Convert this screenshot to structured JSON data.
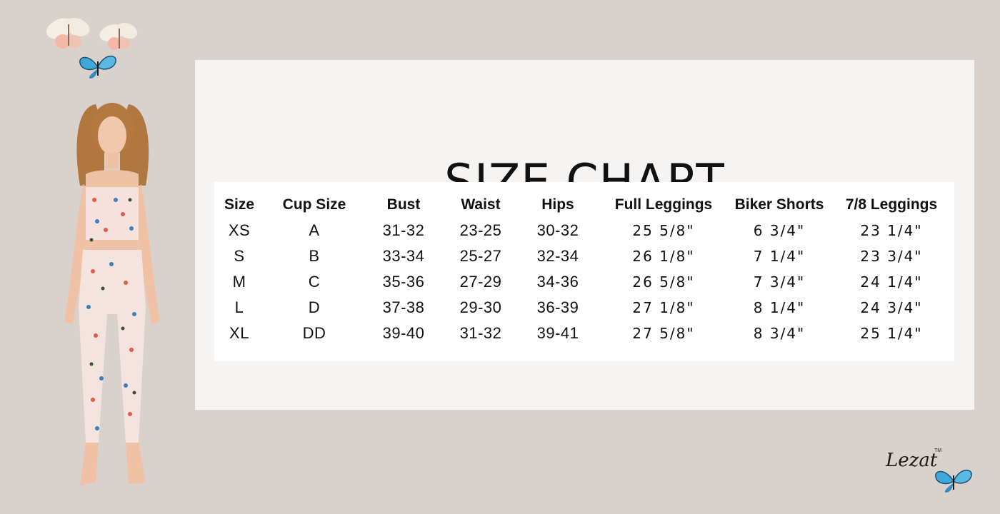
{
  "title": "SIZE CHART",
  "brand": "Lezat",
  "brand_tm": "TM",
  "headers": [
    "Size",
    "Cup Size",
    "Bust",
    "Waist",
    "Hips",
    "Full Leggings",
    "Biker Shorts",
    "7/8 Leggings"
  ],
  "rows": [
    [
      "XS",
      "A",
      "31-32",
      "23-25",
      "30-32",
      "25 5/8\"",
      "6 3/4\"",
      "23 1/4\""
    ],
    [
      "S",
      "B",
      "33-34",
      "25-27",
      "32-34",
      "26 1/8\"",
      "7 1/4\"",
      "23 3/4\""
    ],
    [
      "M",
      "C",
      "35-36",
      "27-29",
      "34-36",
      "26 5/8\"",
      "7 3/4\"",
      "24 1/4\""
    ],
    [
      "L",
      "D",
      "37-38",
      "29-30",
      "36-39",
      "27 1/8\"",
      "8 1/4\"",
      "24 3/4\""
    ],
    [
      "XL",
      "DD",
      "39-40",
      "31-32",
      "39-41",
      "27 5/8\"",
      "8 3/4\"",
      "25 1/4\""
    ]
  ],
  "colors": {
    "background": "#d9d1cc",
    "panel": "#f6f4f3",
    "table": "#ffffff",
    "text": "#111111",
    "butterfly_blue": "#3fa7d9",
    "butterfly_pink": "#f4b8a8"
  },
  "icons": [
    "butterfly-icon"
  ]
}
